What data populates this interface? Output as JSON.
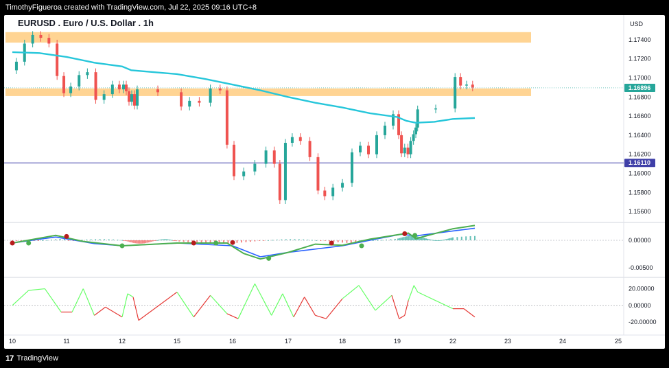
{
  "header": {
    "attribution": "TimothyFigueroa created with TradingView.com, Jul 22, 2025 09:16 UTC+8"
  },
  "footer": {
    "brand": "TradingView"
  },
  "chart_data": {
    "type": "candlestick",
    "symbol_title": "EURUSD . Euro / U.S. Dollar . 1h",
    "currency": "USD",
    "x_ticks": [
      "10",
      "11",
      "12",
      "15",
      "16",
      "17",
      "18",
      "19",
      "22",
      "23",
      "24",
      "25"
    ],
    "y_ticks": [
      "1.17400",
      "1.17200",
      "1.17000",
      "1.16800",
      "1.16600",
      "1.16400",
      "1.16200",
      "1.16000",
      "1.15800",
      "1.15600"
    ],
    "price_badges": [
      {
        "label": "1.16896",
        "value": 1.16896,
        "color": "#26a69a"
      },
      {
        "label": "1.16110",
        "value": 1.1611,
        "color": "#3f3fa8"
      }
    ],
    "horizontal_line": 1.1611,
    "zones": [
      {
        "from": 1.1737,
        "to": 1.1748,
        "color": "#ffcc80"
      },
      {
        "from": 1.1681,
        "to": 1.1689,
        "color": "#ffcc80"
      }
    ],
    "ma_line": {
      "color": "#26c6da",
      "points": [
        [
          10,
          1.1727
        ],
        [
          10.5,
          1.1726
        ],
        [
          11,
          1.1722
        ],
        [
          11.5,
          1.1716
        ],
        [
          12,
          1.1712
        ],
        [
          12.5,
          1.1708
        ],
        [
          15,
          1.1704
        ],
        [
          15.5,
          1.1699
        ],
        [
          16,
          1.1693
        ],
        [
          16.5,
          1.1687
        ],
        [
          17,
          1.168
        ],
        [
          17.5,
          1.1674
        ],
        [
          18,
          1.1669
        ],
        [
          18.5,
          1.1663
        ],
        [
          19,
          1.1659
        ],
        [
          19.5,
          1.1655
        ],
        [
          20,
          1.1653
        ],
        [
          21,
          1.1654
        ],
        [
          22,
          1.1657
        ],
        [
          22.4,
          1.1658
        ]
      ]
    },
    "price_series": [
      [
        10,
        1.1708
      ],
      [
        10.15,
        1.1717
      ],
      [
        10.3,
        1.1736
      ],
      [
        10.45,
        1.1745
      ],
      [
        10.6,
        1.1742
      ],
      [
        10.75,
        1.1736
      ],
      [
        10.9,
        1.1702
      ],
      [
        11,
        1.1684
      ],
      [
        11.15,
        1.1691
      ],
      [
        11.3,
        1.1703
      ],
      [
        11.45,
        1.1706
      ],
      [
        11.6,
        1.1677
      ],
      [
        11.75,
        1.1683
      ],
      [
        11.9,
        1.1693
      ],
      [
        12,
        1.1688
      ],
      [
        12.15,
        1.1693
      ],
      [
        12.3,
        1.1686
      ],
      [
        12.45,
        1.1675
      ],
      [
        12.6,
        1.1683
      ],
      [
        12.75,
        1.1671
      ],
      [
        12.9,
        1.1688
      ],
      [
        15,
        1.1685
      ],
      [
        15.15,
        1.167
      ],
      [
        15.3,
        1.1676
      ],
      [
        15.5,
        1.1674
      ],
      [
        15.7,
        1.1689
      ],
      [
        15.85,
        1.1687
      ],
      [
        15.95,
        1.163
      ],
      [
        16.1,
        1.1597
      ],
      [
        16.3,
        1.1602
      ],
      [
        16.5,
        1.161
      ],
      [
        16.7,
        1.1624
      ],
      [
        16.8,
        1.161
      ],
      [
        16.9,
        1.1572
      ],
      [
        17,
        1.1632
      ],
      [
        17.15,
        1.1638
      ],
      [
        17.3,
        1.1634
      ],
      [
        17.5,
        1.1617
      ],
      [
        17.6,
        1.1582
      ],
      [
        17.75,
        1.1576
      ],
      [
        17.9,
        1.1585
      ],
      [
        18.1,
        1.159
      ],
      [
        18.25,
        1.1622
      ],
      [
        18.4,
        1.1629
      ],
      [
        18.55,
        1.162
      ],
      [
        18.7,
        1.164
      ],
      [
        18.85,
        1.165
      ],
      [
        19,
        1.1662
      ],
      [
        19.15,
        1.164
      ],
      [
        19.3,
        1.1621
      ],
      [
        19.5,
        1.1627
      ],
      [
        19.65,
        1.162
      ],
      [
        19.8,
        1.1634
      ],
      [
        19.95,
        1.1641
      ],
      [
        20.05,
        1.1648
      ],
      [
        20.15,
        1.1667
      ],
      [
        22,
        1.1668
      ],
      [
        22.08,
        1.1701
      ],
      [
        22.2,
        1.1692
      ],
      [
        22.3,
        1.1693
      ],
      [
        22.42,
        1.169
      ]
    ],
    "indicator_1": {
      "y_ticks": [
        "0.00000",
        "-0.00500"
      ],
      "zero": 0.0,
      "line_points": [
        [
          10,
          -0.0005
        ],
        [
          10.8,
          0.0009
        ],
        [
          11.3,
          -0.0002
        ],
        [
          12,
          -0.001
        ],
        [
          15,
          -0.0005
        ],
        [
          15.9,
          -0.0005
        ],
        [
          16.2,
          -0.0024
        ],
        [
          16.5,
          -0.0034
        ],
        [
          17,
          -0.0022
        ],
        [
          17.5,
          -0.0007
        ],
        [
          18,
          -0.0009
        ],
        [
          18.5,
          0.0002
        ],
        [
          19,
          0.001
        ],
        [
          19.6,
          0.0013
        ],
        [
          20,
          0.0003
        ],
        [
          22,
          0.0021
        ],
        [
          22.4,
          0.0027
        ]
      ],
      "signal_points": [
        [
          10,
          -0.0005
        ],
        [
          10.8,
          0.0006
        ],
        [
          11.5,
          -0.0006
        ],
        [
          12,
          -0.001
        ],
        [
          15,
          -0.0005
        ],
        [
          16,
          -0.001
        ],
        [
          16.5,
          -0.003
        ],
        [
          17,
          -0.0022
        ],
        [
          18,
          -0.001
        ],
        [
          18.5,
          0.0
        ],
        [
          19.2,
          0.0011
        ],
        [
          20,
          0.0008
        ],
        [
          22,
          0.0017
        ],
        [
          22.4,
          0.0022
        ]
      ]
    },
    "indicator_2": {
      "y_ticks": [
        "20.00000",
        "0.00000",
        "-20.00000"
      ],
      "points": [
        [
          10,
          0
        ],
        [
          10.3,
          18
        ],
        [
          10.6,
          20
        ],
        [
          10.9,
          -8
        ],
        [
          11.1,
          -8
        ],
        [
          11.3,
          20
        ],
        [
          11.5,
          -12
        ],
        [
          11.7,
          -2
        ],
        [
          12,
          -14
        ],
        [
          12.3,
          14
        ],
        [
          12.6,
          10
        ],
        [
          12.9,
          -18
        ],
        [
          15,
          16
        ],
        [
          15.3,
          -14
        ],
        [
          15.6,
          12
        ],
        [
          15.9,
          -10
        ],
        [
          16.1,
          -16
        ],
        [
          16.4,
          26
        ],
        [
          16.7,
          -12
        ],
        [
          16.9,
          14
        ],
        [
          17.1,
          -14
        ],
        [
          17.3,
          10
        ],
        [
          17.5,
          -12
        ],
        [
          17.7,
          -16
        ],
        [
          18,
          8
        ],
        [
          18.3,
          24
        ],
        [
          18.6,
          -6
        ],
        [
          18.9,
          12
        ],
        [
          19.1,
          -16
        ],
        [
          19.4,
          -12
        ],
        [
          19.6,
          6
        ],
        [
          19.9,
          24
        ],
        [
          20.1,
          16
        ],
        [
          22,
          -4
        ],
        [
          22.2,
          -4
        ],
        [
          22.4,
          -14
        ]
      ]
    }
  }
}
